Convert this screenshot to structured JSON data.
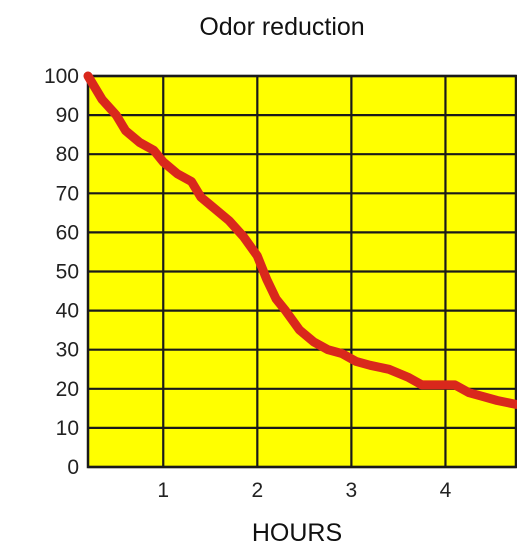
{
  "chart_data": {
    "type": "line",
    "title": "Odor reduction",
    "xlabel": "HOURS",
    "ylabel": "",
    "xlim": [
      0.2,
      4.75
    ],
    "ylim": [
      0,
      100
    ],
    "x_ticks": [
      1,
      2,
      3,
      4
    ],
    "y_ticks": [
      0,
      10,
      20,
      30,
      40,
      50,
      60,
      70,
      80,
      90,
      100
    ],
    "grid": true,
    "colors": {
      "plot_bg": "#ffff00",
      "grid": "#1a1a1a",
      "line": "#d9281c"
    },
    "series": [
      {
        "x": [
          0.2,
          0.35,
          0.5,
          0.6,
          0.75,
          0.9,
          1.0,
          1.15,
          1.3,
          1.4,
          1.5,
          1.7,
          1.85,
          2.0,
          2.1,
          2.2,
          2.3,
          2.45,
          2.6,
          2.75,
          2.9,
          3.05,
          3.2,
          3.4,
          3.6,
          3.75,
          3.85,
          4.0,
          4.1,
          4.25,
          4.4,
          4.55,
          4.75
        ],
        "y": [
          100,
          94,
          90,
          86,
          83,
          81,
          78,
          75,
          73,
          69,
          67,
          63,
          59,
          54,
          48,
          43,
          40,
          35,
          32,
          30,
          29,
          27,
          26,
          25,
          23,
          21,
          21,
          21,
          21,
          19,
          18,
          17,
          16
        ]
      }
    ]
  }
}
